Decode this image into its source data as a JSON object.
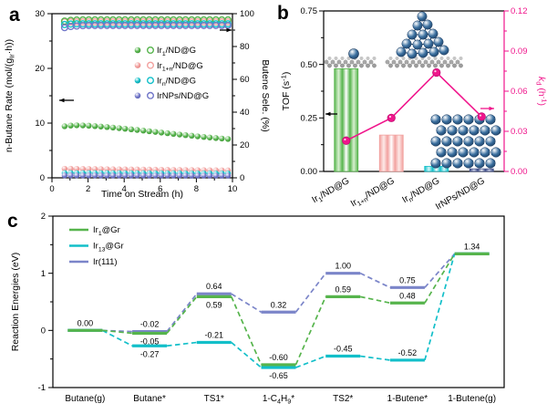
{
  "chart_data": [
    {
      "panel_letter": "a",
      "type": "scatter",
      "x_label": "Time on Stream (h)",
      "y_left_label_segments": [
        {
          "t": "n-Butane Rate (mol/(g"
        },
        {
          "t": "Ir",
          "sub": true
        },
        {
          "t": "·h))"
        }
      ],
      "y_right_label": "Butene Sele. (%)",
      "x_range": [
        0,
        10
      ],
      "x_ticks": [
        0,
        2,
        4,
        6,
        8,
        10
      ],
      "x_minor": [
        1,
        3,
        5,
        7,
        9
      ],
      "y_left_range": [
        0,
        30
      ],
      "y_left_ticks": [
        0,
        10,
        20,
        30
      ],
      "y_left_minor": [
        5,
        15,
        25
      ],
      "y_right_range": [
        0,
        100
      ],
      "y_right_ticks": [
        0,
        20,
        40,
        60,
        80,
        100
      ],
      "y_right_minor": [
        10,
        30,
        50,
        70,
        90
      ],
      "time": [
        0.7,
        1.04,
        1.37,
        1.71,
        2.04,
        2.38,
        2.71,
        3.05,
        3.38,
        3.72,
        4.05,
        4.39,
        4.72,
        5.06,
        5.39,
        5.73,
        6.06,
        6.4,
        6.73,
        7.07,
        7.4,
        7.74,
        8.07,
        8.41,
        8.74,
        9.08,
        9.41,
        9.75
      ],
      "series": [
        {
          "key": "Ir1",
          "label_segments": [
            {
              "t": "Ir"
            },
            {
              "t": "1",
              "sub": true
            },
            {
              "t": "/ND@G"
            }
          ],
          "color": "#56b44c",
          "dark": "#3f9437",
          "rate": [
            9.42,
            9.55,
            9.6,
            9.58,
            9.52,
            9.45,
            9.37,
            9.28,
            9.18,
            9.08,
            8.97,
            8.86,
            8.75,
            8.63,
            8.51,
            8.39,
            8.27,
            8.15,
            8.03,
            7.91,
            7.8,
            7.69,
            7.58,
            7.47,
            7.37,
            7.27,
            7.18,
            7.1
          ],
          "selectivity": [
            95.5,
            95.9,
            96.1,
            96.2,
            96.2,
            96.2,
            96.2,
            96.2,
            96.2,
            96.2,
            96.2,
            96.2,
            96.2,
            96.2,
            96.2,
            96.2,
            96.2,
            96.2,
            96.2,
            96.2,
            96.2,
            96.2,
            96.2,
            96.2,
            96.2,
            96.2,
            96.2,
            96.2
          ]
        },
        {
          "key": "Ir1+n",
          "label_segments": [
            {
              "t": "Ir"
            },
            {
              "t": "1+n",
              "sub": true
            },
            {
              "t": "/ND@G"
            }
          ],
          "color": "#f2a09e",
          "dark": "#e2807e",
          "rate": [
            1.66,
            1.65,
            1.64,
            1.63,
            1.62,
            1.61,
            1.6,
            1.58,
            1.57,
            1.56,
            1.55,
            1.53,
            1.52,
            1.51,
            1.5,
            1.48,
            1.47,
            1.46,
            1.45,
            1.44,
            1.43,
            1.42,
            1.41,
            1.4,
            1.39,
            1.38,
            1.37,
            1.36
          ],
          "selectivity": [
            95.0,
            95.0,
            95.0,
            95.0,
            95.0,
            95.0,
            95.0,
            95.0,
            95.0,
            95.0,
            95.0,
            95.0,
            95.0,
            95.0,
            95.0,
            95.0,
            95.0,
            95.0,
            95.0,
            95.0,
            95.0,
            95.0,
            95.0,
            95.0,
            95.0,
            95.0,
            95.0,
            95.0
          ]
        },
        {
          "key": "Irn",
          "label_segments": [
            {
              "t": "Ir"
            },
            {
              "t": "n",
              "sub": true
            },
            {
              "t": "/ND@G"
            }
          ],
          "color": "#12bfc9",
          "dark": "#0d98a0",
          "rate": [
            0.88,
            0.88,
            0.87,
            0.87,
            0.87,
            0.86,
            0.86,
            0.86,
            0.85,
            0.85,
            0.85,
            0.84,
            0.84,
            0.84,
            0.83,
            0.83,
            0.83,
            0.82,
            0.82,
            0.82,
            0.81,
            0.81,
            0.81,
            0.8,
            0.8,
            0.8,
            0.8,
            0.8
          ],
          "selectivity": [
            93.4,
            93.7,
            93.8,
            93.8,
            93.8,
            93.8,
            93.8,
            93.8,
            93.8,
            93.8,
            93.8,
            93.8,
            93.8,
            93.8,
            93.8,
            93.8,
            93.8,
            93.8,
            93.8,
            93.8,
            93.8,
            93.8,
            93.8,
            93.8,
            93.8,
            93.8,
            93.8,
            93.8
          ]
        },
        {
          "key": "IrNPs",
          "label_segments": [
            {
              "t": "IrNPs/ND@G"
            }
          ],
          "color": "#7277c9",
          "dark": "#5a60b0",
          "rate": [
            0.44,
            0.44,
            0.43,
            0.43,
            0.43,
            0.43,
            0.42,
            0.42,
            0.42,
            0.42,
            0.42,
            0.42,
            0.42,
            0.41,
            0.41,
            0.41,
            0.41,
            0.41,
            0.41,
            0.41,
            0.4,
            0.4,
            0.4,
            0.4,
            0.4,
            0.4,
            0.4,
            0.4
          ],
          "selectivity": [
            91.5,
            92.2,
            92.5,
            92.7,
            92.8,
            92.8,
            92.8,
            92.8,
            92.8,
            92.8,
            92.8,
            92.8,
            92.8,
            92.8,
            92.8,
            92.8,
            92.8,
            92.8,
            92.8,
            92.8,
            92.8,
            92.8,
            92.8,
            92.8,
            92.8,
            92.8,
            92.8,
            92.8
          ]
        }
      ]
    },
    {
      "panel_letter": "b",
      "type": "bar+line",
      "y_left_label_segments": [
        {
          "t": "TOF (s"
        },
        {
          "t": "-1",
          "sup": true
        },
        {
          "t": ")"
        }
      ],
      "y_right_label_segments": [
        {
          "t": "k",
          "i": true
        },
        {
          "t": "d",
          "sub": true
        },
        {
          "t": " (h"
        },
        {
          "t": "-1",
          "sup": true
        },
        {
          "t": ")"
        }
      ],
      "right_color": "#f0168c",
      "y_left_range": [
        0,
        0.75
      ],
      "y_left_ticks": [
        0,
        0.25,
        0.5,
        0.75
      ],
      "y_left_minor": [
        0.125,
        0.375,
        0.625
      ],
      "y_right_range": [
        0,
        0.12
      ],
      "y_right_ticks": [
        0,
        0.03,
        0.06,
        0.09,
        0.12
      ],
      "y_right_minor": [
        0.015,
        0.045,
        0.075,
        0.105
      ],
      "categories_segments": [
        [
          {
            "t": "Ir"
          },
          {
            "t": "1",
            "sub": true
          },
          {
            "t": "/ND@G"
          }
        ],
        [
          {
            "t": "Ir"
          },
          {
            "t": "1+n",
            "sub": true
          },
          {
            "t": "/ND@G"
          }
        ],
        [
          {
            "t": "Ir"
          },
          {
            "t": "n",
            "sub": true
          },
          {
            "t": "/ND@G"
          }
        ],
        [
          {
            "t": "IrNPs/ND@G"
          }
        ]
      ],
      "tof": [
        0.48,
        0.17,
        0.024,
        0.012
      ],
      "bar_colors": [
        "#56b44c",
        "#f2a09e",
        "#12bfc9",
        "#3c4a85"
      ],
      "bar_lights": [
        "#d9f0d1",
        "#fdeae8",
        "#d8f6f8",
        "#d4d9ec"
      ],
      "kd": [
        0.023,
        0.04,
        0.074,
        0.041
      ],
      "inset_models": [
        "Ir single atom on graphene",
        "Ir cluster on graphene",
        "Ir nanoparticle"
      ]
    },
    {
      "panel_letter": "c",
      "type": "line",
      "y_label": "Reaction Energies (eV)",
      "y_range": [
        -1,
        2
      ],
      "y_ticks": [
        -1,
        0,
        1,
        2
      ],
      "y_minor": [
        -0.5,
        0.5,
        1.5
      ],
      "categories_segments": [
        [
          {
            "t": "Butane(g)"
          }
        ],
        [
          {
            "t": "Butane*"
          }
        ],
        [
          {
            "t": "TS1*"
          }
        ],
        [
          {
            "t": "1-C"
          },
          {
            "t": "4",
            "sub": true
          },
          {
            "t": "H"
          },
          {
            "t": "9",
            "sub": true
          },
          {
            "t": "*"
          }
        ],
        [
          {
            "t": "TS2*"
          }
        ],
        [
          {
            "t": "1-Butene*"
          }
        ],
        [
          {
            "t": "1-Butene(g)"
          }
        ]
      ],
      "series": [
        {
          "name_segments": [
            {
              "t": "Ir"
            },
            {
              "t": "1",
              "sub": true
            },
            {
              "t": "@Gr"
            }
          ],
          "color": "#56b44c",
          "values": [
            0.0,
            -0.05,
            0.59,
            -0.6,
            0.59,
            0.48,
            1.34
          ],
          "labels": [
            "0.00",
            "-0.05",
            "0.59",
            "-0.60",
            "0.59",
            "0.48",
            "1.34"
          ],
          "label_pos": [
            "above",
            "below",
            "below",
            "above",
            "above",
            "above",
            "above"
          ]
        },
        {
          "name_segments": [
            {
              "t": "Ir"
            },
            {
              "t": "13",
              "sub": true
            },
            {
              "t": "@Gr"
            }
          ],
          "color": "#12bfc9",
          "values": [
            0.0,
            -0.27,
            -0.21,
            -0.65,
            -0.45,
            -0.52,
            1.34
          ],
          "labels": [
            null,
            "-0.27",
            "-0.21",
            "-0.65",
            "-0.45",
            "-0.52",
            null
          ],
          "label_pos": [
            null,
            "below",
            "above",
            "below",
            "above",
            "above",
            null
          ]
        },
        {
          "name_segments": [
            {
              "t": "Ir(111)"
            }
          ],
          "color": "#7b85c9",
          "values": [
            0.0,
            -0.02,
            0.64,
            0.32,
            1.0,
            0.75,
            1.34
          ],
          "labels": [
            null,
            "-0.02",
            "0.64",
            "0.32",
            "1.00",
            "0.75",
            null
          ],
          "label_pos": [
            null,
            "above",
            "above",
            "above",
            "above",
            "above",
            null
          ]
        }
      ]
    }
  ]
}
